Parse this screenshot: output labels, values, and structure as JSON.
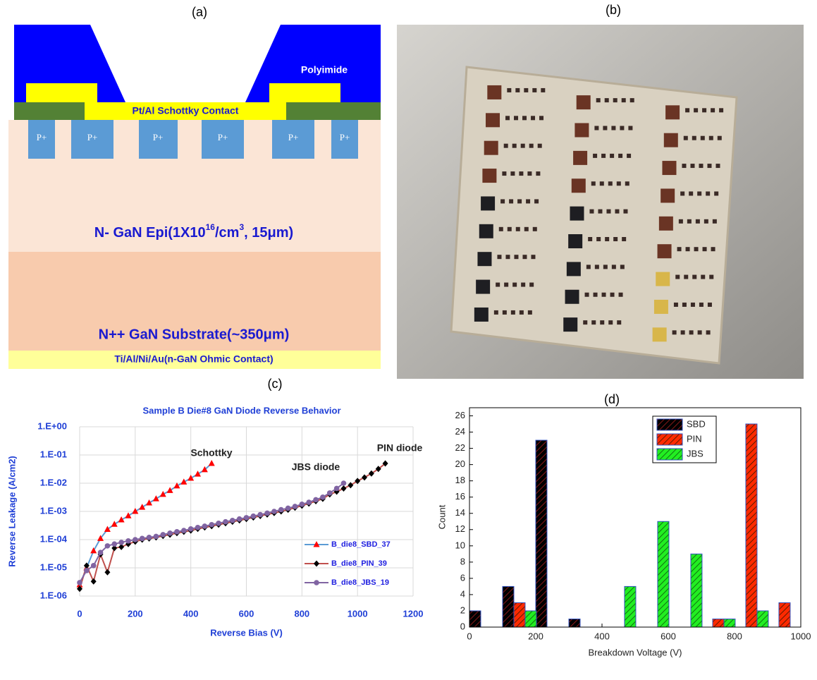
{
  "panel_labels": [
    "(a)",
    "(b)",
    "(c)",
    "(d)"
  ],
  "diagram": {
    "polyimide": "Polyimide",
    "schottky_contact": "Pt/Al Schottky Contact",
    "p_regions": [
      "P+",
      "P+",
      "P+",
      "P+",
      "P+",
      "P+"
    ],
    "epi": [
      "N- GaN Epi(1X10",
      "16",
      "/cm",
      "3",
      ", 15μm)"
    ],
    "substrate": "N++ GaN Substrate(~350μm)",
    "ohmic": "Ti/Al/Ni/Au(n-GaN Ohmic Contact)"
  },
  "chart_data": [
    {
      "type": "line",
      "title": "Sample B Die#8 GaN Diode Reverse Behavior",
      "x_label": "Reverse Bias (V)",
      "y_label": "Reverse Leakage (A/cm2)",
      "log_y": true,
      "grid": true,
      "legend": "right",
      "xlim": [
        0,
        1200
      ],
      "xticks": [
        0,
        200,
        400,
        600,
        800,
        1000,
        1200
      ],
      "ylim": [
        1e-06,
        1
      ],
      "yticks": [
        {
          "value": 1e-06,
          "label": "1.E-06"
        },
        {
          "value": 1e-05,
          "label": "1.E-05"
        },
        {
          "value": 0.0001,
          "label": "1.E-04"
        },
        {
          "value": 0.001,
          "label": "1.E-03"
        },
        {
          "value": 0.01,
          "label": "1.E-02"
        },
        {
          "value": 0.1,
          "label": "1.E-01"
        },
        {
          "value": 1,
          "label": "1.E+00"
        }
      ],
      "annotations": [
        "Schottky",
        "JBS diode",
        "PIN diode"
      ],
      "series": [
        {
          "name": "B_die8_SBD_37",
          "color": "#5b9bd5",
          "marker": "triangle",
          "marker_color": "#ff0000",
          "x": [
            0,
            25,
            50,
            75,
            100,
            125,
            150,
            175,
            200,
            225,
            250,
            275,
            300,
            325,
            350,
            375,
            400,
            425,
            450,
            475
          ],
          "values": [
            2.5e-06,
            1e-05,
            4e-05,
            0.00011,
            0.00023,
            0.00035,
            0.0005,
            0.0007,
            0.001,
            0.0014,
            0.002,
            0.0028,
            0.004,
            0.0055,
            0.008,
            0.011,
            0.015,
            0.021,
            0.03,
            0.05
          ]
        },
        {
          "name": "B_die8_PIN_39",
          "color": "#c0504d",
          "marker": "diamond",
          "marker_color": "#000000",
          "x": [
            0,
            25,
            50,
            75,
            100,
            125,
            150,
            175,
            200,
            225,
            250,
            275,
            300,
            325,
            350,
            375,
            400,
            425,
            450,
            475,
            500,
            525,
            550,
            575,
            600,
            625,
            650,
            675,
            700,
            725,
            750,
            775,
            800,
            825,
            850,
            875,
            900,
            925,
            950,
            975,
            1000,
            1025,
            1050,
            1075,
            1100
          ],
          "values": [
            1.8e-06,
            1.2e-05,
            3.3e-06,
            3e-05,
            7e-06,
            5e-05,
            5.5e-05,
            7e-05,
            8.5e-05,
            0.0001,
            0.00011,
            0.00012,
            0.000135,
            0.00015,
            0.00017,
            0.00019,
            0.00021,
            0.00024,
            0.00027,
            0.0003,
            0.00034,
            0.00038,
            0.00043,
            0.00048,
            0.00054,
            0.00061,
            0.00069,
            0.00078,
            0.00088,
            0.001,
            0.00115,
            0.00135,
            0.0016,
            0.0019,
            0.0023,
            0.0028,
            0.004,
            0.005,
            0.0065,
            0.0085,
            0.012,
            0.016,
            0.022,
            0.032,
            0.05
          ]
        },
        {
          "name": "B_die8_JBS_19",
          "color": "#8064a2",
          "marker": "circle",
          "marker_color": "#8064a2",
          "x": [
            0,
            25,
            50,
            75,
            100,
            125,
            150,
            175,
            200,
            225,
            250,
            275,
            300,
            325,
            350,
            375,
            400,
            425,
            450,
            475,
            500,
            525,
            550,
            575,
            600,
            625,
            650,
            675,
            700,
            725,
            750,
            775,
            800,
            825,
            850,
            875,
            900,
            925,
            950
          ],
          "values": [
            3e-06,
            8e-06,
            1.2e-05,
            3.5e-05,
            6e-05,
            7e-05,
            8e-05,
            9e-05,
            0.0001,
            0.00011,
            0.00012,
            0.00013,
            0.00015,
            0.00017,
            0.00019,
            0.00021,
            0.00024,
            0.00027,
            0.0003,
            0.00034,
            0.00038,
            0.00043,
            0.00048,
            0.00054,
            0.0006,
            0.00068,
            0.00077,
            0.00087,
            0.001,
            0.00115,
            0.0013,
            0.0015,
            0.0018,
            0.0021,
            0.0026,
            0.0032,
            0.0045,
            0.0065,
            0.01
          ]
        }
      ]
    },
    {
      "type": "bar",
      "x_label": "Breakdown Voltage (V)",
      "y_label": "Count",
      "legend": "top-right",
      "xlim": [
        0,
        1000
      ],
      "xticks": [
        0,
        200,
        400,
        600,
        800,
        1000
      ],
      "ylim": [
        0,
        27
      ],
      "yticks": [
        0,
        2,
        4,
        6,
        8,
        10,
        12,
        14,
        16,
        18,
        20,
        22,
        24,
        26
      ],
      "series": [
        {
          "name": "SBD",
          "color": "#000000",
          "hatch": "#8b1a1a",
          "x": [
            17,
            117,
            217,
            317
          ],
          "values": [
            2,
            5,
            23,
            1
          ]
        },
        {
          "name": "PIN",
          "color": "#ff2a00",
          "hatch": "#5a1a00",
          "x": [
            151,
            751,
            851,
            951
          ],
          "values": [
            3,
            1,
            25,
            3
          ]
        },
        {
          "name": "JBS",
          "color": "#22ee22",
          "hatch": "#107010",
          "x": [
            185,
            485,
            585,
            685,
            785,
            885
          ],
          "values": [
            2,
            5,
            13,
            9,
            1,
            2
          ]
        }
      ]
    }
  ]
}
